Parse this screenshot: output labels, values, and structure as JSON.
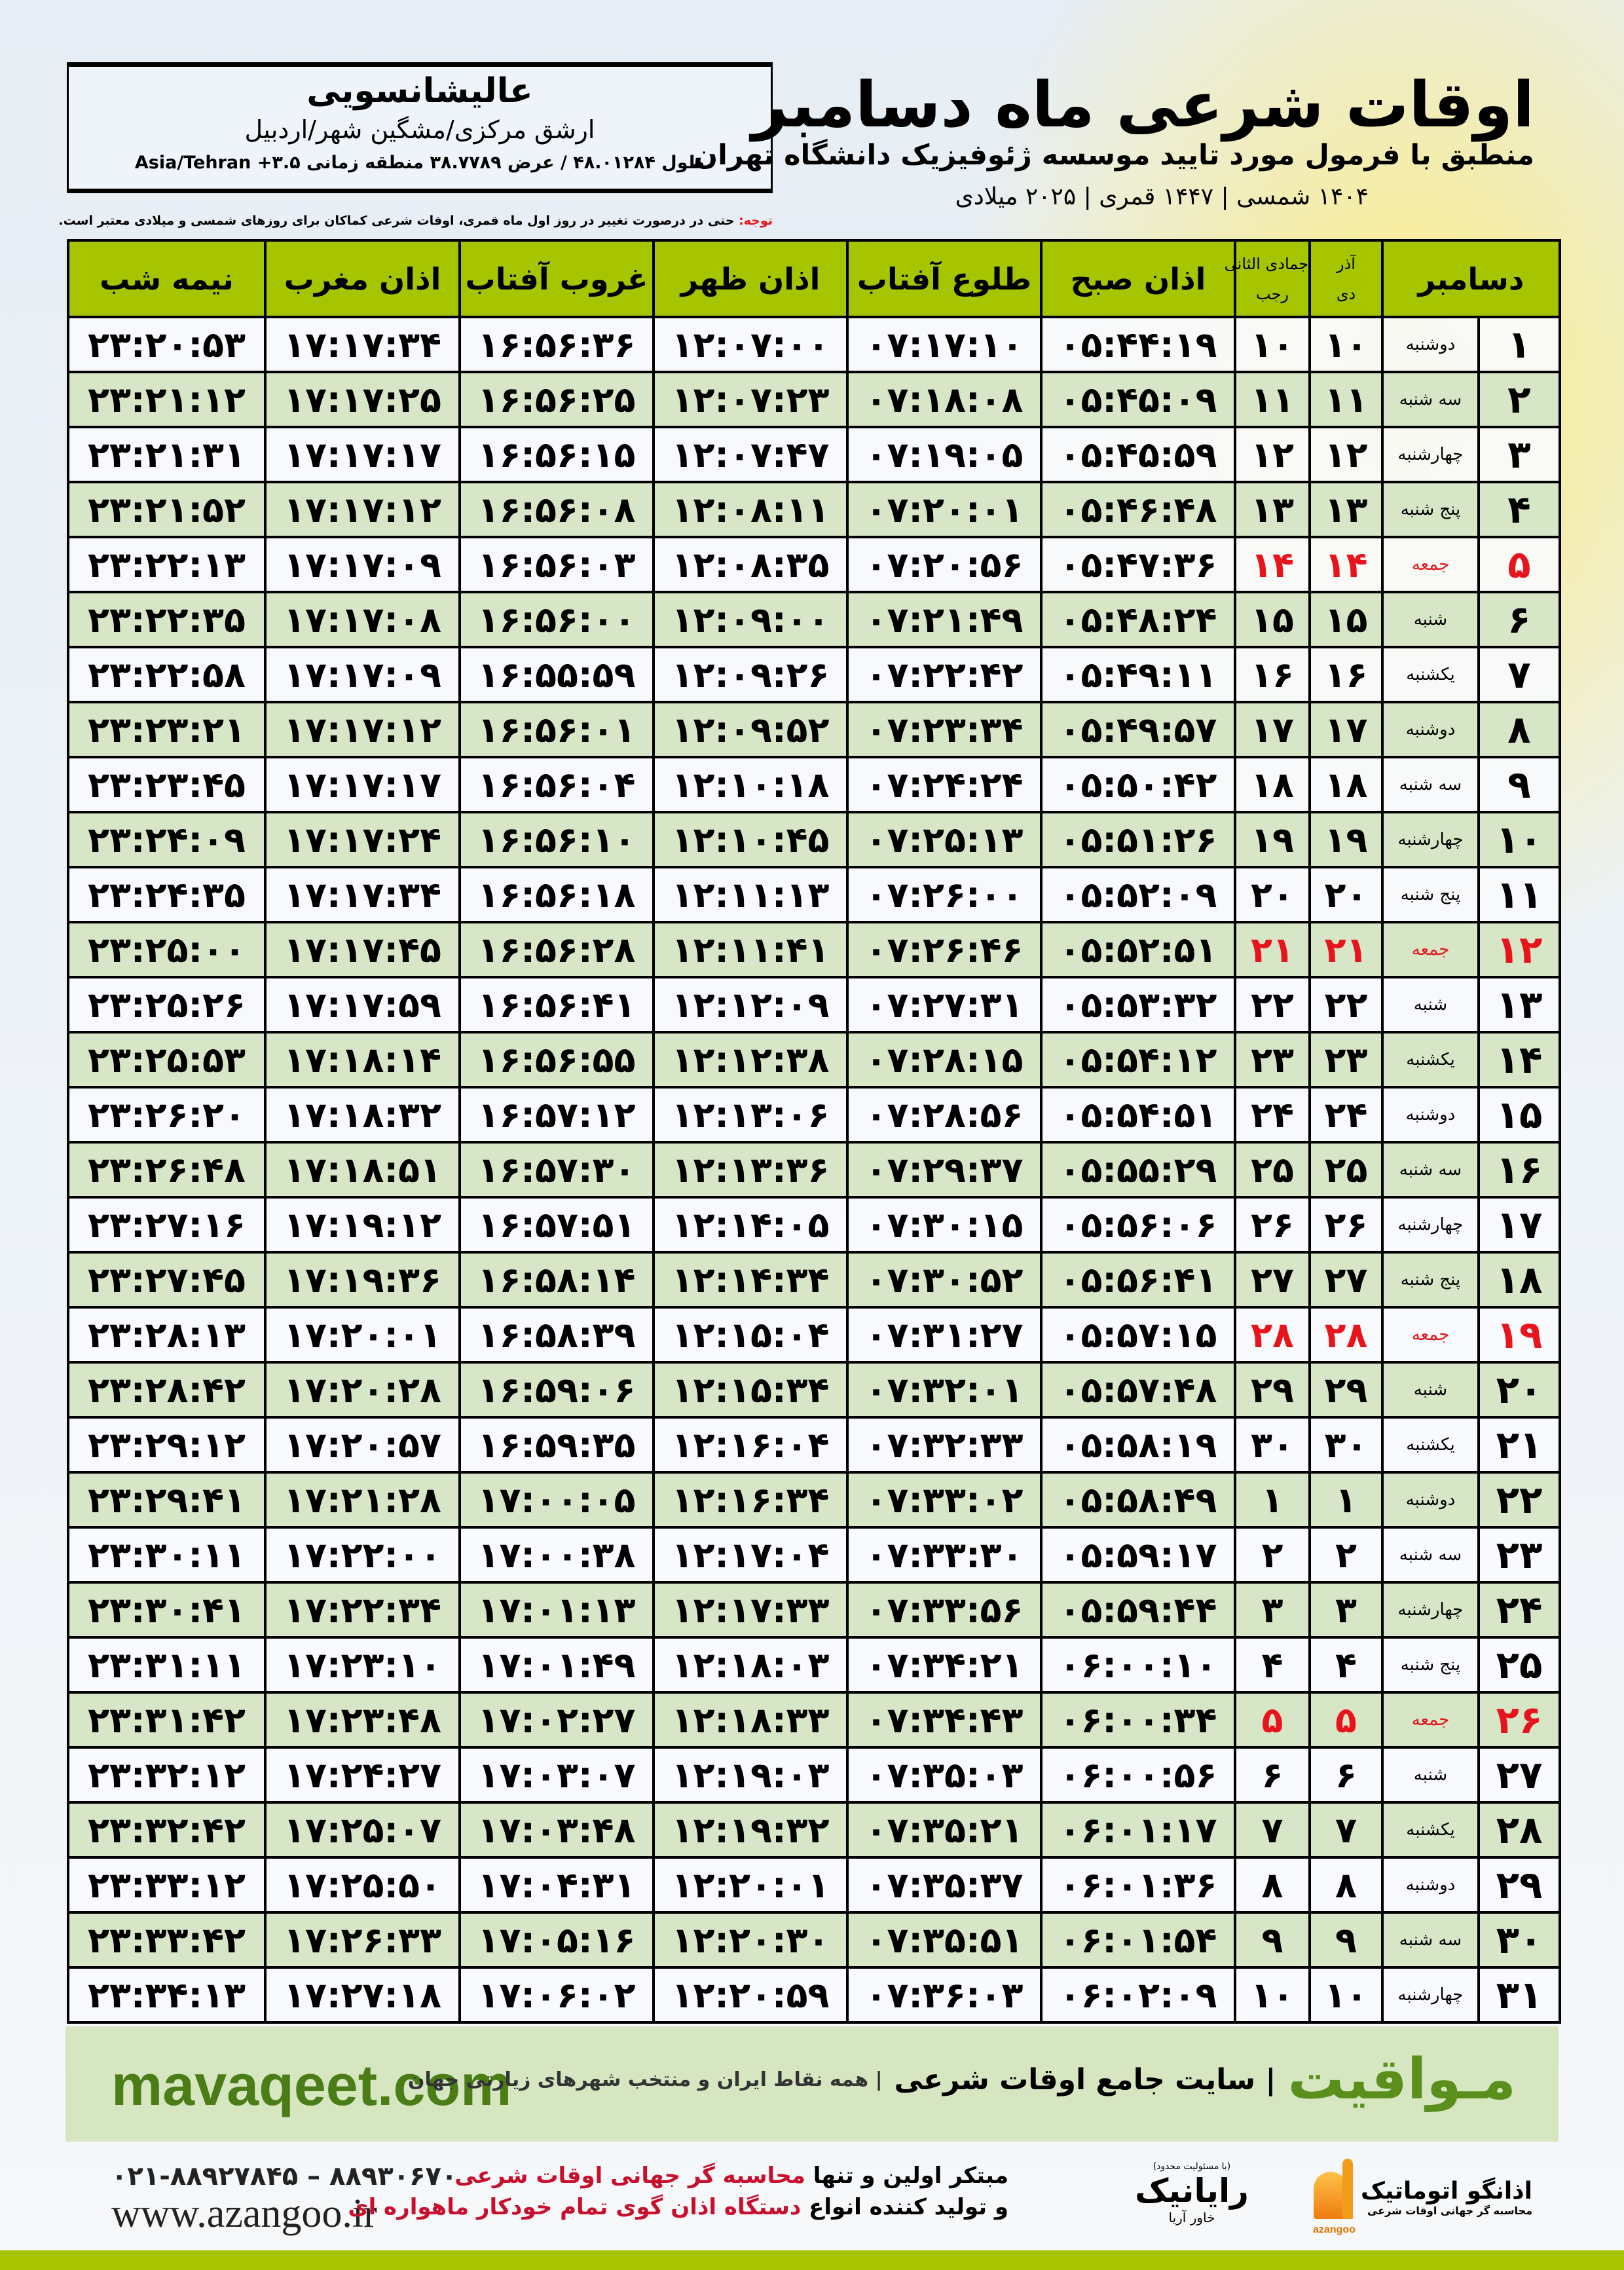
{
  "info": {
    "place": "عالیشانسویی",
    "region": "ارشق مرکزی/مشگین شهر/اردبیل",
    "coords": "طول ۴۸.۰۱۲۸۴ / عرض ۳۸.۷۷۸۹ منطقه زمانی ۳.۵+ Asia/Tehran"
  },
  "header": {
    "title": "اوقات شرعی ماه دسامبر",
    "subtitle": "منطبق با فرمول مورد تایید موسسه ژئوفیزیک دانشگاه تهران",
    "dates": "۱۴۰۴ شمسی | ۱۴۴۷ قمری | ۲۰۲۵ میلادی"
  },
  "note": {
    "label": "توجه:",
    "text": " حتی در درصورت تغییر در روز اول ماه قمری، اوقات شرعی کماکان برای روزهای شمسی و میلادی معتبر است."
  },
  "table": {
    "headers": {
      "month": "دسامبر",
      "shamsi_top": "آذر",
      "shamsi_bottom": "دی",
      "qamari_top": "جمادی الثانی",
      "qamari_bottom": "رجب",
      "sobh": "اذان صبح",
      "tolu": "طلوع آفتاب",
      "zohr": "اذان ظهر",
      "ghorub": "غروب آفتاب",
      "maghrib": "اذان مغرب",
      "nimeh": "نیمه شب"
    },
    "holiday_weekday": "جمعه",
    "holiday_color": "#e8141b",
    "header_color": "#a6c500",
    "alt_row_color": "#d6e6c6",
    "rows": [
      [
        "۱",
        "دوشنبه",
        "۱۰",
        "۱۰",
        "۰۵:۴۴:۱۹",
        "۰۷:۱۷:۱۰",
        "۱۲:۰۷:۰۰",
        "۱۶:۵۶:۳۶",
        "۱۷:۱۷:۳۴",
        "۲۳:۲۰:۵۳"
      ],
      [
        "۲",
        "سه شنبه",
        "۱۱",
        "۱۱",
        "۰۵:۴۵:۰۹",
        "۰۷:۱۸:۰۸",
        "۱۲:۰۷:۲۳",
        "۱۶:۵۶:۲۵",
        "۱۷:۱۷:۲۵",
        "۲۳:۲۱:۱۲"
      ],
      [
        "۳",
        "چهارشنبه",
        "۱۲",
        "۱۲",
        "۰۵:۴۵:۵۹",
        "۰۷:۱۹:۰۵",
        "۱۲:۰۷:۴۷",
        "۱۶:۵۶:۱۵",
        "۱۷:۱۷:۱۷",
        "۲۳:۲۱:۳۱"
      ],
      [
        "۴",
        "پنج شنبه",
        "۱۳",
        "۱۳",
        "۰۵:۴۶:۴۸",
        "۰۷:۲۰:۰۱",
        "۱۲:۰۸:۱۱",
        "۱۶:۵۶:۰۸",
        "۱۷:۱۷:۱۲",
        "۲۳:۲۱:۵۲"
      ],
      [
        "۵",
        "جمعه",
        "۱۴",
        "۱۴",
        "۰۵:۴۷:۳۶",
        "۰۷:۲۰:۵۶",
        "۱۲:۰۸:۳۵",
        "۱۶:۵۶:۰۳",
        "۱۷:۱۷:۰۹",
        "۲۳:۲۲:۱۳"
      ],
      [
        "۶",
        "شنبه",
        "۱۵",
        "۱۵",
        "۰۵:۴۸:۲۴",
        "۰۷:۲۱:۴۹",
        "۱۲:۰۹:۰۰",
        "۱۶:۵۶:۰۰",
        "۱۷:۱۷:۰۸",
        "۲۳:۲۲:۳۵"
      ],
      [
        "۷",
        "یکشنبه",
        "۱۶",
        "۱۶",
        "۰۵:۴۹:۱۱",
        "۰۷:۲۲:۴۲",
        "۱۲:۰۹:۲۶",
        "۱۶:۵۵:۵۹",
        "۱۷:۱۷:۰۹",
        "۲۳:۲۲:۵۸"
      ],
      [
        "۸",
        "دوشنبه",
        "۱۷",
        "۱۷",
        "۰۵:۴۹:۵۷",
        "۰۷:۲۳:۳۴",
        "۱۲:۰۹:۵۲",
        "۱۶:۵۶:۰۱",
        "۱۷:۱۷:۱۲",
        "۲۳:۲۳:۲۱"
      ],
      [
        "۹",
        "سه شنبه",
        "۱۸",
        "۱۸",
        "۰۵:۵۰:۴۲",
        "۰۷:۲۴:۲۴",
        "۱۲:۱۰:۱۸",
        "۱۶:۵۶:۰۴",
        "۱۷:۱۷:۱۷",
        "۲۳:۲۳:۴۵"
      ],
      [
        "۱۰",
        "چهارشنبه",
        "۱۹",
        "۱۹",
        "۰۵:۵۱:۲۶",
        "۰۷:۲۵:۱۳",
        "۱۲:۱۰:۴۵",
        "۱۶:۵۶:۱۰",
        "۱۷:۱۷:۲۴",
        "۲۳:۲۴:۰۹"
      ],
      [
        "۱۱",
        "پنج شنبه",
        "۲۰",
        "۲۰",
        "۰۵:۵۲:۰۹",
        "۰۷:۲۶:۰۰",
        "۱۲:۱۱:۱۳",
        "۱۶:۵۶:۱۸",
        "۱۷:۱۷:۳۴",
        "۲۳:۲۴:۳۵"
      ],
      [
        "۱۲",
        "جمعه",
        "۲۱",
        "۲۱",
        "۰۵:۵۲:۵۱",
        "۰۷:۲۶:۴۶",
        "۱۲:۱۱:۴۱",
        "۱۶:۵۶:۲۸",
        "۱۷:۱۷:۴۵",
        "۲۳:۲۵:۰۰"
      ],
      [
        "۱۳",
        "شنبه",
        "۲۲",
        "۲۲",
        "۰۵:۵۳:۳۲",
        "۰۷:۲۷:۳۱",
        "۱۲:۱۲:۰۹",
        "۱۶:۵۶:۴۱",
        "۱۷:۱۷:۵۹",
        "۲۳:۲۵:۲۶"
      ],
      [
        "۱۴",
        "یکشنبه",
        "۲۳",
        "۲۳",
        "۰۵:۵۴:۱۲",
        "۰۷:۲۸:۱۵",
        "۱۲:۱۲:۳۸",
        "۱۶:۵۶:۵۵",
        "۱۷:۱۸:۱۴",
        "۲۳:۲۵:۵۳"
      ],
      [
        "۱۵",
        "دوشنبه",
        "۲۴",
        "۲۴",
        "۰۵:۵۴:۵۱",
        "۰۷:۲۸:۵۶",
        "۱۲:۱۳:۰۶",
        "۱۶:۵۷:۱۲",
        "۱۷:۱۸:۳۲",
        "۲۳:۲۶:۲۰"
      ],
      [
        "۱۶",
        "سه شنبه",
        "۲۵",
        "۲۵",
        "۰۵:۵۵:۲۹",
        "۰۷:۲۹:۳۷",
        "۱۲:۱۳:۳۶",
        "۱۶:۵۷:۳۰",
        "۱۷:۱۸:۵۱",
        "۲۳:۲۶:۴۸"
      ],
      [
        "۱۷",
        "چهارشنبه",
        "۲۶",
        "۲۶",
        "۰۵:۵۶:۰۶",
        "۰۷:۳۰:۱۵",
        "۱۲:۱۴:۰۵",
        "۱۶:۵۷:۵۱",
        "۱۷:۱۹:۱۲",
        "۲۳:۲۷:۱۶"
      ],
      [
        "۱۸",
        "پنج شنبه",
        "۲۷",
        "۲۷",
        "۰۵:۵۶:۴۱",
        "۰۷:۳۰:۵۲",
        "۱۲:۱۴:۳۴",
        "۱۶:۵۸:۱۴",
        "۱۷:۱۹:۳۶",
        "۲۳:۲۷:۴۵"
      ],
      [
        "۱۹",
        "جمعه",
        "۲۸",
        "۲۸",
        "۰۵:۵۷:۱۵",
        "۰۷:۳۱:۲۷",
        "۱۲:۱۵:۰۴",
        "۱۶:۵۸:۳۹",
        "۱۷:۲۰:۰۱",
        "۲۳:۲۸:۱۳"
      ],
      [
        "۲۰",
        "شنبه",
        "۲۹",
        "۲۹",
        "۰۵:۵۷:۴۸",
        "۰۷:۳۲:۰۱",
        "۱۲:۱۵:۳۴",
        "۱۶:۵۹:۰۶",
        "۱۷:۲۰:۲۸",
        "۲۳:۲۸:۴۲"
      ],
      [
        "۲۱",
        "یکشنبه",
        "۳۰",
        "۳۰",
        "۰۵:۵۸:۱۹",
        "۰۷:۳۲:۳۳",
        "۱۲:۱۶:۰۴",
        "۱۶:۵۹:۳۵",
        "۱۷:۲۰:۵۷",
        "۲۳:۲۹:۱۲"
      ],
      [
        "۲۲",
        "دوشنبه",
        "۱",
        "۱",
        "۰۵:۵۸:۴۹",
        "۰۷:۳۳:۰۲",
        "۱۲:۱۶:۳۴",
        "۱۷:۰۰:۰۵",
        "۱۷:۲۱:۲۸",
        "۲۳:۲۹:۴۱"
      ],
      [
        "۲۳",
        "سه شنبه",
        "۲",
        "۲",
        "۰۵:۵۹:۱۷",
        "۰۷:۳۳:۳۰",
        "۱۲:۱۷:۰۴",
        "۱۷:۰۰:۳۸",
        "۱۷:۲۲:۰۰",
        "۲۳:۳۰:۱۱"
      ],
      [
        "۲۴",
        "چهارشنبه",
        "۳",
        "۳",
        "۰۵:۵۹:۴۴",
        "۰۷:۳۳:۵۶",
        "۱۲:۱۷:۳۳",
        "۱۷:۰۱:۱۳",
        "۱۷:۲۲:۳۴",
        "۲۳:۳۰:۴۱"
      ],
      [
        "۲۵",
        "پنج شنبه",
        "۴",
        "۴",
        "۰۶:۰۰:۱۰",
        "۰۷:۳۴:۲۱",
        "۱۲:۱۸:۰۳",
        "۱۷:۰۱:۴۹",
        "۱۷:۲۳:۱۰",
        "۲۳:۳۱:۱۱"
      ],
      [
        "۲۶",
        "جمعه",
        "۵",
        "۵",
        "۰۶:۰۰:۳۴",
        "۰۷:۳۴:۴۳",
        "۱۲:۱۸:۳۳",
        "۱۷:۰۲:۲۷",
        "۱۷:۲۳:۴۸",
        "۲۳:۳۱:۴۲"
      ],
      [
        "۲۷",
        "شنبه",
        "۶",
        "۶",
        "۰۶:۰۰:۵۶",
        "۰۷:۳۵:۰۳",
        "۱۲:۱۹:۰۳",
        "۱۷:۰۳:۰۷",
        "۱۷:۲۴:۲۷",
        "۲۳:۳۲:۱۲"
      ],
      [
        "۲۸",
        "یکشنبه",
        "۷",
        "۷",
        "۰۶:۰۱:۱۷",
        "۰۷:۳۵:۲۱",
        "۱۲:۱۹:۳۲",
        "۱۷:۰۳:۴۸",
        "۱۷:۲۵:۰۷",
        "۲۳:۳۲:۴۲"
      ],
      [
        "۲۹",
        "دوشنبه",
        "۸",
        "۸",
        "۰۶:۰۱:۳۶",
        "۰۷:۳۵:۳۷",
        "۱۲:۲۰:۰۱",
        "۱۷:۰۴:۳۱",
        "۱۷:۲۵:۵۰",
        "۲۳:۳۳:۱۲"
      ],
      [
        "۳۰",
        "سه شنبه",
        "۹",
        "۹",
        "۰۶:۰۱:۵۴",
        "۰۷:۳۵:۵۱",
        "۱۲:۲۰:۳۰",
        "۱۷:۰۵:۱۶",
        "۱۷:۲۶:۳۳",
        "۲۳:۳۳:۴۲"
      ],
      [
        "۳۱",
        "چهارشنبه",
        "۱۰",
        "۱۰",
        "۰۶:۰۲:۰۹",
        "۰۷:۳۶:۰۳",
        "۱۲:۲۰:۵۹",
        "۱۷:۰۶:۰۲",
        "۱۷:۲۷:۱۸",
        "۲۳:۳۴:۱۳"
      ]
    ]
  },
  "banner": {
    "site": "mavaqeet.com",
    "brand": "مـواقیت",
    "tagline": "| سایت جامع اوقات شرعی",
    "tagline2": "| همه نقاط ایران و منتخب شهرهای زیارتی جهان",
    "brand_color": "#5a8f1c"
  },
  "footer": {
    "phone": "۰۲۱-۸۸۹۲۷۸۴۵ – ۸۸۹۳۰۶۷۰",
    "website": "www.azangoo.ir",
    "slogan1_a": "مبتکر اولین و تنها ",
    "slogan1_b": "محاسبه گر جهانی اوقات شرعی",
    "slogan2_a": "و تولید کننده انواع ",
    "slogan2_b": "دستگاه اذان گوی تمام خودکار ماهواره ای",
    "logo_rayanik_note": "(با مسئولیت محدود)",
    "logo_rayanik": "رایانیک",
    "logo_rayanik_sub": "خاور آریا",
    "logo_azangoo": "اذانگو اتوماتیک",
    "logo_azangoo_sub": "محاسبه گر جهانی اوقات شرعی",
    "logo_azangoo_latin": "azangoo"
  }
}
